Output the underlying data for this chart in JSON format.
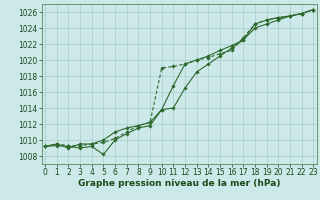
{
  "title": "Graphe pression niveau de la mer (hPa)",
  "bg_color": "#cce8e8",
  "grid_color": "#aacccc",
  "line_color": "#2d6a2d",
  "xlim": [
    -0.3,
    23.3
  ],
  "ylim": [
    1007.0,
    1027.0
  ],
  "yticks": [
    1008,
    1010,
    1012,
    1014,
    1016,
    1018,
    1020,
    1022,
    1024,
    1026
  ],
  "xticks": [
    0,
    1,
    2,
    3,
    4,
    5,
    6,
    7,
    8,
    9,
    10,
    11,
    12,
    13,
    14,
    15,
    16,
    17,
    18,
    19,
    20,
    21,
    22,
    23
  ],
  "series1": [
    1009.2,
    1009.5,
    1009.3,
    1009.3,
    1009.5,
    1009.7,
    1010.2,
    1011.0,
    1011.8,
    1012.2,
    1019.0,
    1019.2,
    1019.5,
    1020.0,
    1020.3,
    1020.8,
    1021.2,
    1022.8,
    1024.5,
    1025.0,
    1025.3,
    1025.5,
    1025.8,
    1026.3
  ],
  "series2": [
    1009.2,
    1009.3,
    1009.2,
    1009.0,
    1009.2,
    1008.2,
    1010.0,
    1010.8,
    1011.5,
    1011.8,
    1013.8,
    1016.8,
    1019.5,
    1020.0,
    1020.5,
    1021.2,
    1021.8,
    1022.5,
    1024.5,
    1025.0,
    1025.3,
    1025.5,
    1025.8,
    1026.3
  ],
  "series3": [
    1009.2,
    1009.5,
    1009.0,
    1009.5,
    1009.5,
    1010.0,
    1011.0,
    1011.5,
    1011.8,
    1012.2,
    1013.8,
    1014.0,
    1016.5,
    1018.5,
    1019.5,
    1020.5,
    1021.5,
    1022.5,
    1024.0,
    1024.5,
    1025.0,
    1025.5,
    1025.8,
    1026.3
  ],
  "tick_fontsize": 5.5,
  "xlabel_fontsize": 6.5,
  "marker_size": 1.8,
  "line_width": 0.8
}
